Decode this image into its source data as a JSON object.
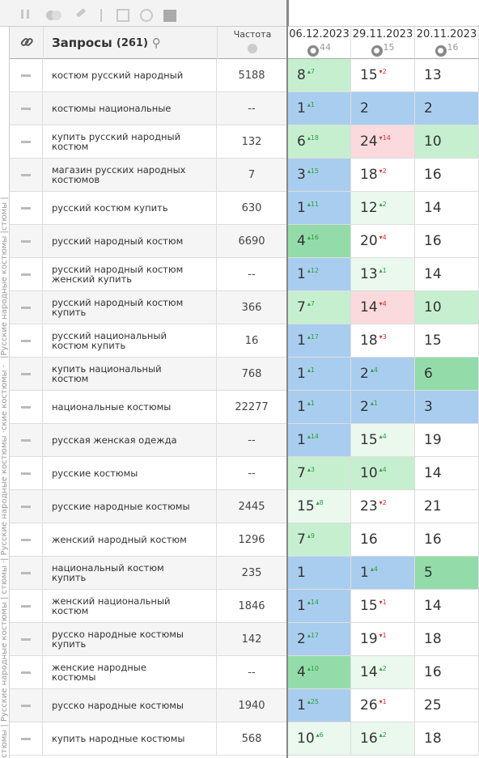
{
  "side_labels": [
    "|Русские народные костюмы |стюмы |",
    "| Русские народные костюмы ·ские костюмы ·",
    "стюмы | Русские народные костюмы | стюмы ·"
  ],
  "header": {
    "query_title": "Запросы",
    "query_count": "(261)",
    "freq_title": "Частота",
    "dates": [
      {
        "date": "06.12.2023",
        "count": 44
      },
      {
        "date": "29.11.2023",
        "count": 15
      },
      {
        "date": "20.11.2023",
        "count": 16
      }
    ]
  },
  "colors": {
    "blue": "#a9cdef",
    "green": "#93dcaa",
    "lightgreen": "#c6efd0",
    "pale": "#eaf8ee",
    "pink": "#fadadd",
    "white": "#ffffff",
    "up": "#2e9e3e",
    "down": "#d9302c"
  },
  "rows": [
    {
      "query": "костюм русский народный",
      "freq": 5188,
      "pos": [
        {
          "v": 8,
          "ch": 7,
          "dir": "up",
          "bg": "lightgreen"
        },
        {
          "v": 15,
          "ch": 2,
          "dir": "down",
          "bg": "white"
        },
        {
          "v": 13,
          "bg": "white"
        }
      ]
    },
    {
      "query": "костюмы национальные",
      "freq": "--",
      "pos": [
        {
          "v": 1,
          "ch": 1,
          "dir": "up",
          "bg": "blue"
        },
        {
          "v": 2,
          "bg": "blue"
        },
        {
          "v": 2,
          "bg": "blue"
        }
      ]
    },
    {
      "query": "купить русский народный костюм",
      "freq": 132,
      "pos": [
        {
          "v": 6,
          "ch": 18,
          "dir": "up",
          "bg": "lightgreen"
        },
        {
          "v": 24,
          "ch": 14,
          "dir": "down",
          "bg": "pink"
        },
        {
          "v": 10,
          "bg": "lightgreen"
        }
      ]
    },
    {
      "query": "магазин русских народных костюмов",
      "freq": 7,
      "pos": [
        {
          "v": 3,
          "ch": 15,
          "dir": "up",
          "bg": "blue"
        },
        {
          "v": 18,
          "ch": 2,
          "dir": "down",
          "bg": "white"
        },
        {
          "v": 16,
          "bg": "white"
        }
      ]
    },
    {
      "query": "русский костюм купить",
      "freq": 630,
      "pos": [
        {
          "v": 1,
          "ch": 11,
          "dir": "up",
          "bg": "blue"
        },
        {
          "v": 12,
          "ch": 2,
          "dir": "up",
          "bg": "pale"
        },
        {
          "v": 14,
          "bg": "white"
        }
      ]
    },
    {
      "query": "русский народный костюм",
      "freq": 6690,
      "pos": [
        {
          "v": 4,
          "ch": 16,
          "dir": "up",
          "bg": "green"
        },
        {
          "v": 20,
          "ch": 4,
          "dir": "down",
          "bg": "white"
        },
        {
          "v": 16,
          "bg": "white"
        }
      ]
    },
    {
      "query": "русский народный костюм женский купить",
      "freq": "--",
      "pos": [
        {
          "v": 1,
          "ch": 12,
          "dir": "up",
          "bg": "blue"
        },
        {
          "v": 13,
          "ch": 1,
          "dir": "up",
          "bg": "pale"
        },
        {
          "v": 14,
          "bg": "white"
        }
      ]
    },
    {
      "query": "русский народный костюм купить",
      "freq": 366,
      "pos": [
        {
          "v": 7,
          "ch": 7,
          "dir": "up",
          "bg": "lightgreen"
        },
        {
          "v": 14,
          "ch": 4,
          "dir": "down",
          "bg": "pink"
        },
        {
          "v": 10,
          "bg": "lightgreen"
        }
      ]
    },
    {
      "query": "русский национальный костюм купить",
      "freq": 16,
      "pos": [
        {
          "v": 1,
          "ch": 17,
          "dir": "up",
          "bg": "blue"
        },
        {
          "v": 18,
          "ch": 3,
          "dir": "down",
          "bg": "white"
        },
        {
          "v": 15,
          "bg": "white"
        }
      ]
    },
    {
      "query": "купить национальный костюм",
      "freq": 768,
      "pos": [
        {
          "v": 1,
          "ch": 1,
          "dir": "up",
          "bg": "blue"
        },
        {
          "v": 2,
          "ch": 4,
          "dir": "up",
          "bg": "blue"
        },
        {
          "v": 6,
          "bg": "green"
        }
      ]
    },
    {
      "query": "национальные костюмы",
      "freq": 22277,
      "pos": [
        {
          "v": 1,
          "ch": 1,
          "dir": "up",
          "bg": "blue"
        },
        {
          "v": 2,
          "ch": 1,
          "dir": "up",
          "bg": "blue"
        },
        {
          "v": 3,
          "bg": "blue"
        }
      ]
    },
    {
      "query": "русская женская одежда",
      "freq": "--",
      "pos": [
        {
          "v": 1,
          "ch": 14,
          "dir": "up",
          "bg": "blue"
        },
        {
          "v": 15,
          "ch": 4,
          "dir": "up",
          "bg": "pale"
        },
        {
          "v": 19,
          "bg": "white"
        }
      ]
    },
    {
      "query": "русские костюмы",
      "freq": "--",
      "pos": [
        {
          "v": 7,
          "ch": 3,
          "dir": "up",
          "bg": "lightgreen"
        },
        {
          "v": 10,
          "ch": 4,
          "dir": "up",
          "bg": "lightgreen"
        },
        {
          "v": 14,
          "bg": "white"
        }
      ]
    },
    {
      "query": "русские народные костюмы",
      "freq": 2445,
      "pos": [
        {
          "v": 15,
          "ch": 8,
          "dir": "up",
          "bg": "pale"
        },
        {
          "v": 23,
          "ch": 2,
          "dir": "down",
          "bg": "white"
        },
        {
          "v": 21,
          "bg": "white"
        }
      ]
    },
    {
      "query": "женский народный костюм",
      "freq": 1296,
      "pos": [
        {
          "v": 7,
          "ch": 9,
          "dir": "up",
          "bg": "lightgreen"
        },
        {
          "v": 16,
          "bg": "white"
        },
        {
          "v": 16,
          "bg": "white"
        }
      ]
    },
    {
      "query": "национальный костюм купить",
      "freq": 235,
      "pos": [
        {
          "v": 1,
          "bg": "blue"
        },
        {
          "v": 1,
          "ch": 4,
          "dir": "up",
          "bg": "blue"
        },
        {
          "v": 5,
          "bg": "green"
        }
      ]
    },
    {
      "query": "женский национальный костюм",
      "freq": 1846,
      "pos": [
        {
          "v": 1,
          "ch": 14,
          "dir": "up",
          "bg": "blue"
        },
        {
          "v": 15,
          "ch": 1,
          "dir": "down",
          "bg": "white"
        },
        {
          "v": 14,
          "bg": "white"
        }
      ]
    },
    {
      "query": "русско народные костюмы купить",
      "freq": 142,
      "pos": [
        {
          "v": 2,
          "ch": 17,
          "dir": "up",
          "bg": "blue"
        },
        {
          "v": 19,
          "ch": 1,
          "dir": "down",
          "bg": "white"
        },
        {
          "v": 18,
          "bg": "white"
        }
      ]
    },
    {
      "query": "женские народные костюмы",
      "freq": "--",
      "pos": [
        {
          "v": 4,
          "ch": 10,
          "dir": "up",
          "bg": "green"
        },
        {
          "v": 14,
          "ch": 2,
          "dir": "up",
          "bg": "pale"
        },
        {
          "v": 16,
          "bg": "white"
        }
      ]
    },
    {
      "query": "русско народные костюмы",
      "freq": 1940,
      "pos": [
        {
          "v": 1,
          "ch": 25,
          "dir": "up",
          "bg": "blue"
        },
        {
          "v": 26,
          "ch": 1,
          "dir": "down",
          "bg": "white"
        },
        {
          "v": 25,
          "bg": "white"
        }
      ]
    },
    {
      "query": "купить народные костюмы",
      "freq": 568,
      "pos": [
        {
          "v": 10,
          "ch": 6,
          "dir": "up",
          "bg": "pale"
        },
        {
          "v": 16,
          "ch": 2,
          "dir": "up",
          "bg": "pale"
        },
        {
          "v": 18,
          "bg": "white"
        }
      ]
    }
  ]
}
